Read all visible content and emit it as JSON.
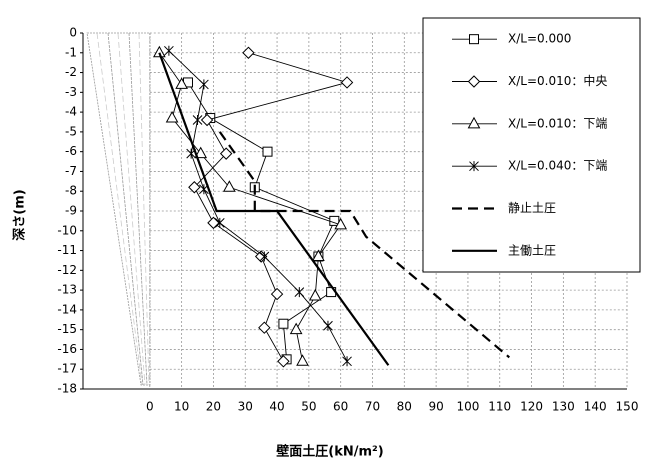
{
  "chart_data": {
    "type": "line",
    "xlabel": "壁面土圧(kN/m²)",
    "ylabel": "深さ(m)",
    "xlim": [
      -21,
      150
    ],
    "xticks": [
      0,
      10,
      20,
      30,
      40,
      50,
      60,
      70,
      80,
      90,
      100,
      110,
      120,
      130,
      140,
      150
    ],
    "ylim": [
      -18,
      0
    ],
    "yticks": [
      0,
      -1,
      -2,
      -3,
      -4,
      -5,
      -6,
      -7,
      -8,
      -9,
      -10,
      -11,
      -12,
      -13,
      -14,
      -15,
      -16,
      -17,
      -18
    ],
    "grid": true,
    "legend": "upper right",
    "series": [
      {
        "name": "X/L=0.000",
        "color": "#000000",
        "marker": "square",
        "line_style": "thin",
        "x": [
          12,
          19,
          37,
          33,
          58,
          53,
          57,
          42,
          43
        ],
        "values": [
          -2.5,
          -4.3,
          -6,
          -7.8,
          -9.5,
          -11.3,
          -13.1,
          -14.7,
          -16.5
        ]
      },
      {
        "name": "X/L=0.010：中央",
        "color": "#000000",
        "marker": "diamond",
        "line_style": "thin",
        "x": [
          31,
          62,
          18,
          24,
          14,
          20,
          35,
          40,
          36,
          42
        ],
        "values": [
          -1,
          -2.5,
          -4.4,
          -6.1,
          -7.8,
          -9.6,
          -11.3,
          -13.2,
          -14.9,
          -16.6
        ]
      },
      {
        "name": "X/L=0.010：下端",
        "color": "#000000",
        "marker": "triangle",
        "line_style": "thin",
        "x": [
          3,
          10,
          7,
          16,
          25,
          60,
          53,
          52,
          46,
          48
        ],
        "values": [
          -1,
          -2.6,
          -4.3,
          -6.1,
          -7.8,
          -9.7,
          -11.3,
          -13.3,
          -15,
          -16.6
        ]
      },
      {
        "name": "X/L=0.040：下端",
        "color": "#000000",
        "marker": "asterisk",
        "line_style": "thin",
        "x": [
          6,
          17,
          15,
          13,
          17,
          22,
          36,
          47,
          56,
          62
        ],
        "values": [
          -0.9,
          -2.6,
          -4.4,
          -6.1,
          -7.9,
          -9.6,
          -11.3,
          -13.1,
          -14.8,
          -16.6
        ]
      },
      {
        "name": "静止土圧",
        "color": "#000000",
        "marker": "none",
        "line_style": "dashed",
        "x": [
          22,
          33,
          33,
          63,
          68,
          113
        ],
        "values": [
          -5,
          -7.5,
          -9,
          -9,
          -10.3,
          -16.4
        ]
      },
      {
        "name": "主働土圧",
        "color": "#000000",
        "marker": "none",
        "line_style": "thick",
        "x": [
          3,
          21,
          40,
          75
        ],
        "values": [
          -1,
          -9,
          -9,
          -16.8
        ]
      }
    ]
  }
}
